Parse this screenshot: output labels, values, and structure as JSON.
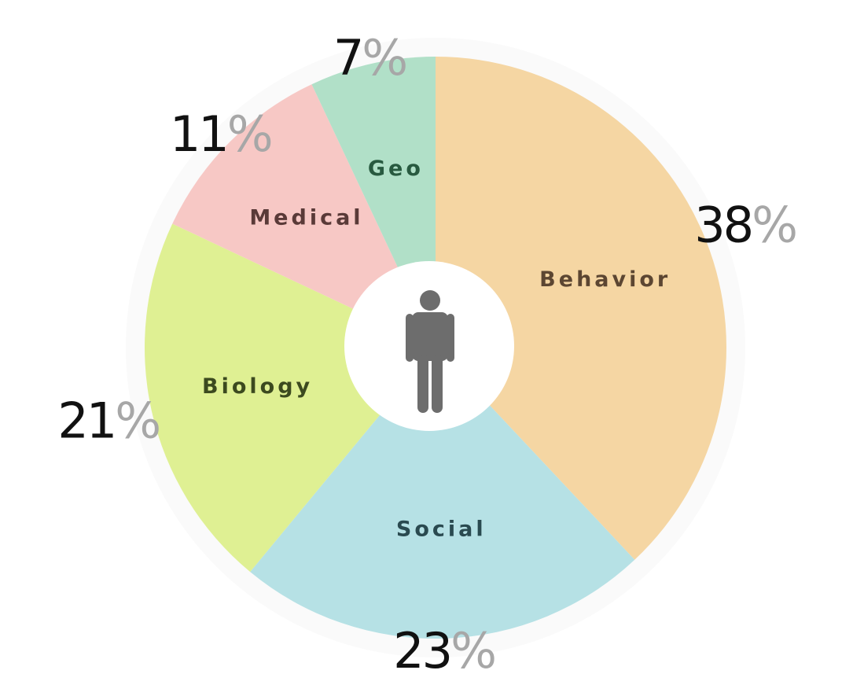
{
  "chart_data": {
    "type": "pie",
    "categories": [
      "Behavior",
      "Social",
      "Biology",
      "Medical",
      "Geo"
    ],
    "values": [
      38,
      23,
      21,
      11,
      7
    ],
    "value_labels": [
      "38",
      "23",
      "21",
      "11",
      "7"
    ],
    "percent_sign": "%",
    "colors": [
      "#f5d6a3",
      "#b6e1e5",
      "#dff093",
      "#f7c8c5",
      "#b1e0c8"
    ],
    "label_colors": [
      "#5c4632",
      "#2a4a50",
      "#3c4a1f",
      "#5a3a38",
      "#285a40"
    ],
    "center_icon": "person-icon",
    "center_color": "#ffffff",
    "icon_color": "#6d6d6d",
    "legend": "none"
  }
}
